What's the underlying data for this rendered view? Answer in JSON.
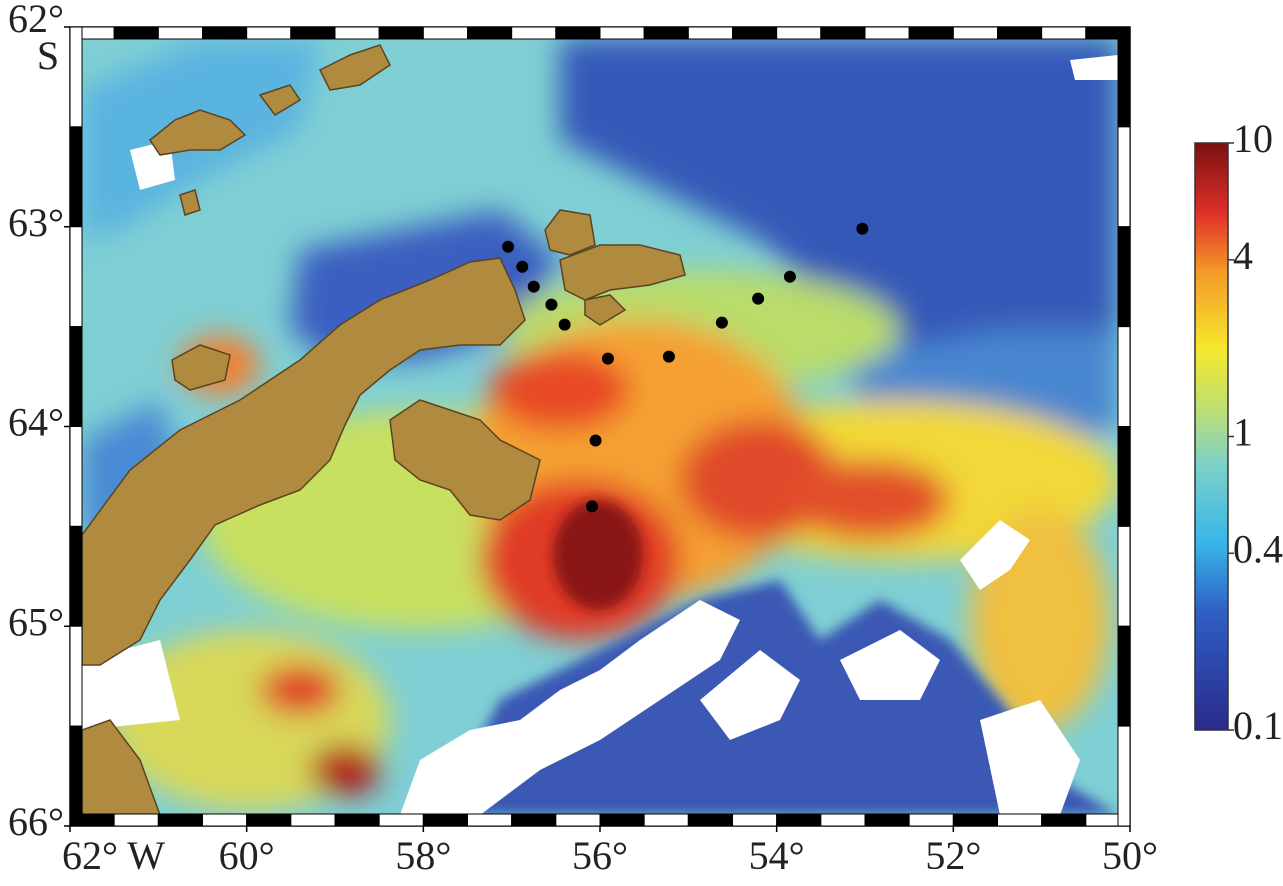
{
  "map": {
    "lat_hemisphere": "S",
    "xlim": [
      62,
      50
    ],
    "xticks": [
      {
        "value": 62,
        "label": "62° W"
      },
      {
        "value": 60,
        "label": "60°"
      },
      {
        "value": 58,
        "label": "58°"
      },
      {
        "value": 56,
        "label": "56°"
      },
      {
        "value": 54,
        "label": "54°"
      },
      {
        "value": 52,
        "label": "52°"
      },
      {
        "value": 50,
        "label": "50°"
      }
    ],
    "ylim": [
      62,
      66
    ],
    "yticks": [
      {
        "value": 62,
        "label": "62°"
      },
      {
        "value": 63,
        "label": "63°"
      },
      {
        "value": 64,
        "label": "64°"
      },
      {
        "value": 65,
        "label": "65°"
      },
      {
        "value": 66,
        "label": "66°"
      }
    ],
    "stations": {
      "lon": [
        57.04,
        56.88,
        56.75,
        56.55,
        56.4,
        55.91,
        55.22,
        56.05,
        56.09,
        54.62,
        54.21,
        53.85,
        53.03
      ],
      "lat": [
        63.1,
        63.2,
        63.3,
        63.39,
        63.49,
        63.66,
        63.65,
        64.07,
        64.4,
        63.48,
        63.36,
        63.25,
        63.01
      ],
      "color": "#000000"
    },
    "colorbar": {
      "log_scale": true,
      "lim": [
        0.1,
        10
      ],
      "ticks": [
        0.1,
        0.4,
        1,
        4,
        10
      ]
    }
  }
}
